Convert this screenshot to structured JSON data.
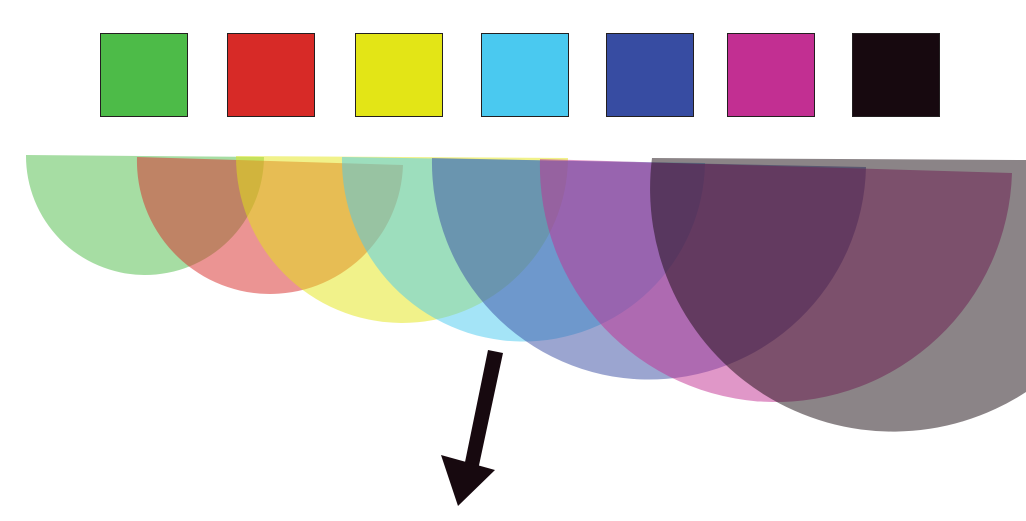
{
  "swatches": [
    {
      "name": "green",
      "color": "#4dbb48"
    },
    {
      "name": "red",
      "color": "#d72a27"
    },
    {
      "name": "yellow",
      "color": "#e3e516"
    },
    {
      "name": "cyan",
      "color": "#4ac9f0"
    },
    {
      "name": "blue",
      "color": "#374ca2"
    },
    {
      "name": "magenta",
      "color": "#c22f92"
    },
    {
      "name": "black",
      "color": "#17090f"
    }
  ],
  "overlay_opacity": 0.5,
  "arrow": {
    "color": "#17090f",
    "direction": "down"
  }
}
